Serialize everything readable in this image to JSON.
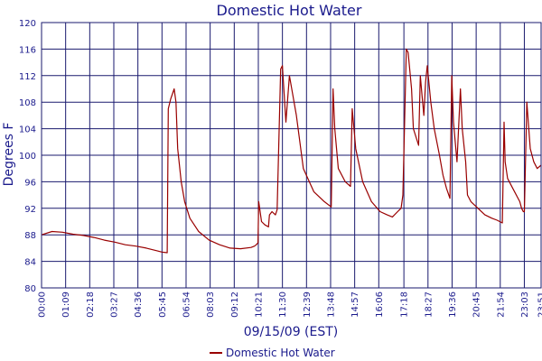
{
  "chart_data": {
    "type": "line",
    "title": "Domestic Hot Water",
    "xlabel": "09/15/09 (EST)",
    "ylabel": "Degrees F",
    "ylim": [
      80,
      120
    ],
    "yticks": [
      "80",
      "84",
      "88",
      "92",
      "96",
      "100",
      "104",
      "108",
      "112",
      "116",
      "120"
    ],
    "xlim": [
      "00:00",
      "23:51"
    ],
    "xticks": [
      "00:00",
      "01:09",
      "02:18",
      "03:27",
      "04:36",
      "05:45",
      "06:54",
      "08:03",
      "09:12",
      "10:21",
      "11:30",
      "12:39",
      "13:48",
      "14:57",
      "16:06",
      "17:18",
      "18:27",
      "19:36",
      "20:45",
      "21:54",
      "23:03",
      "23:51"
    ],
    "grid": true,
    "legend": "bottom",
    "colors": {
      "series": "#990000",
      "grid": "#1a1a6e",
      "text": "#1a1a8c"
    },
    "series": [
      {
        "name": "Domestic Hot Water",
        "x": [
          "00:00",
          "00:30",
          "01:00",
          "01:30",
          "02:00",
          "02:30",
          "03:00",
          "03:30",
          "04:00",
          "04:30",
          "05:00",
          "05:30",
          "05:45",
          "06:00",
          "06:03",
          "06:10",
          "06:20",
          "06:25",
          "06:30",
          "06:40",
          "06:50",
          "07:05",
          "07:30",
          "08:00",
          "08:30",
          "09:00",
          "09:30",
          "10:00",
          "10:10",
          "10:15",
          "10:20",
          "10:22",
          "10:30",
          "10:40",
          "10:50",
          "10:53",
          "11:00",
          "11:10",
          "11:15",
          "11:25",
          "11:30",
          "11:40",
          "11:50",
          "12:10",
          "12:30",
          "13:00",
          "13:30",
          "13:50",
          "13:55",
          "14:00",
          "14:10",
          "14:30",
          "14:45",
          "14:50",
          "15:00",
          "15:20",
          "15:45",
          "16:10",
          "16:30",
          "16:45",
          "17:00",
          "17:10",
          "17:15",
          "17:25",
          "17:30",
          "17:40",
          "17:45",
          "18:00",
          "18:05",
          "18:10",
          "18:15",
          "18:20",
          "18:25",
          "18:35",
          "18:45",
          "19:00",
          "19:10",
          "19:20",
          "19:30",
          "19:35",
          "19:40",
          "19:50",
          "20:00",
          "20:05",
          "20:15",
          "20:20",
          "20:30",
          "20:50",
          "21:10",
          "21:30",
          "21:45",
          "22:00",
          "22:05",
          "22:08",
          "22:15",
          "22:30",
          "22:50",
          "22:55",
          "23:00",
          "23:03",
          "23:10",
          "23:20",
          "23:30",
          "23:40",
          "23:51"
        ],
        "y": [
          88.0,
          88.5,
          88.4,
          88.1,
          87.9,
          87.6,
          87.2,
          86.9,
          86.5,
          86.3,
          86.0,
          85.6,
          85.4,
          85.3,
          107.0,
          108.5,
          110.0,
          108.0,
          101.0,
          96.0,
          93.0,
          90.5,
          88.5,
          87.2,
          86.5,
          86.0,
          85.9,
          86.1,
          86.3,
          86.5,
          86.8,
          93.0,
          90.0,
          89.5,
          89.2,
          91.0,
          91.5,
          91.0,
          91.8,
          113.0,
          113.5,
          105.0,
          112.0,
          106.0,
          98.0,
          94.5,
          93.0,
          92.2,
          110.0,
          104.0,
          98.0,
          96.0,
          95.3,
          107.0,
          101.0,
          96.0,
          93.0,
          91.5,
          91.0,
          90.7,
          91.5,
          92.0,
          94.0,
          116.0,
          115.5,
          110.0,
          104.0,
          101.5,
          112.0,
          109.0,
          106.0,
          111.0,
          113.5,
          108.0,
          104.0,
          100.0,
          97.0,
          95.0,
          93.5,
          112.0,
          105.0,
          99.0,
          110.0,
          104.0,
          99.0,
          94.0,
          93.0,
          92.0,
          91.0,
          90.5,
          90.2,
          89.8,
          105.0,
          99.0,
          96.5,
          95.0,
          93.0,
          92.0,
          91.5,
          91.5,
          108.0,
          101.0,
          99.0,
          98.0,
          98.5
        ]
      }
    ]
  }
}
